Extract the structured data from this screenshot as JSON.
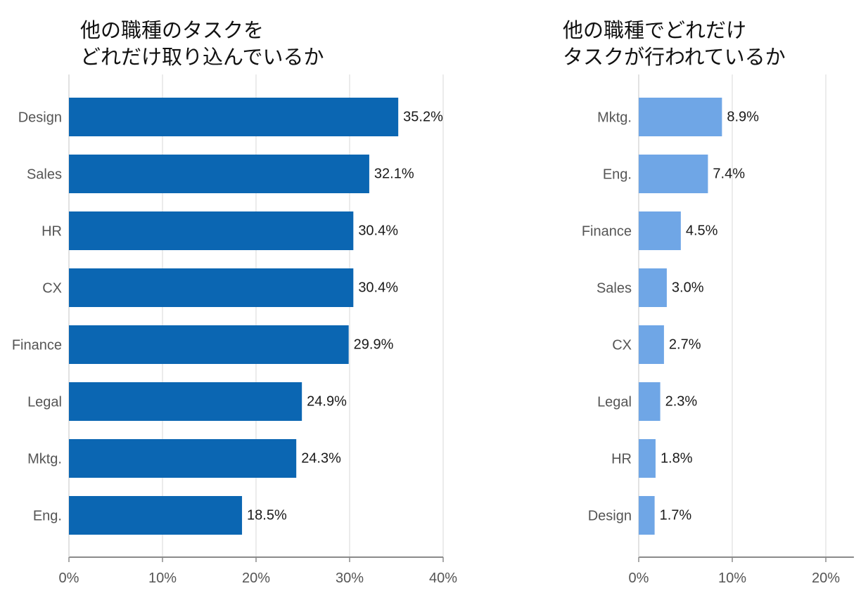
{
  "chart_data": [
    {
      "type": "bar",
      "orientation": "horizontal",
      "title_lines": [
        "他の職種のタスクを",
        "どれだけ取り込んでいるか"
      ],
      "categories": [
        "Design",
        "Sales",
        "HR",
        "CX",
        "Finance",
        "Legal",
        "Mktg.",
        "Eng."
      ],
      "values": [
        35.2,
        32.1,
        30.4,
        30.4,
        29.9,
        24.9,
        24.3,
        18.5
      ],
      "value_labels": [
        "35.2%",
        "32.1%",
        "30.4%",
        "30.4%",
        "29.9%",
        "24.9%",
        "24.3%",
        "18.5%"
      ],
      "xlim": [
        0,
        40
      ],
      "xticks": [
        0,
        10,
        20,
        30,
        40
      ],
      "xtick_labels": [
        "0%",
        "10%",
        "20%",
        "30%",
        "40%"
      ],
      "bar_color": "#0b66b2",
      "grid": true
    },
    {
      "type": "bar",
      "orientation": "horizontal",
      "title_lines": [
        "他の職種でどれだけ",
        "タスクが行われているか"
      ],
      "categories": [
        "Mktg.",
        "Eng.",
        "Finance",
        "Sales",
        "CX",
        "Legal",
        "HR",
        "Design"
      ],
      "values": [
        8.9,
        7.4,
        4.5,
        3.0,
        2.7,
        2.3,
        1.8,
        1.7
      ],
      "value_labels": [
        "8.9%",
        "7.4%",
        "4.5%",
        "3.0%",
        "2.7%",
        "2.3%",
        "1.8%",
        "1.7%"
      ],
      "xlim": [
        0,
        23
      ],
      "xticks": [
        0,
        10,
        20
      ],
      "xtick_labels": [
        "0%",
        "10%",
        "20%"
      ],
      "bar_color": "#6fa6e6",
      "grid": true
    }
  ]
}
